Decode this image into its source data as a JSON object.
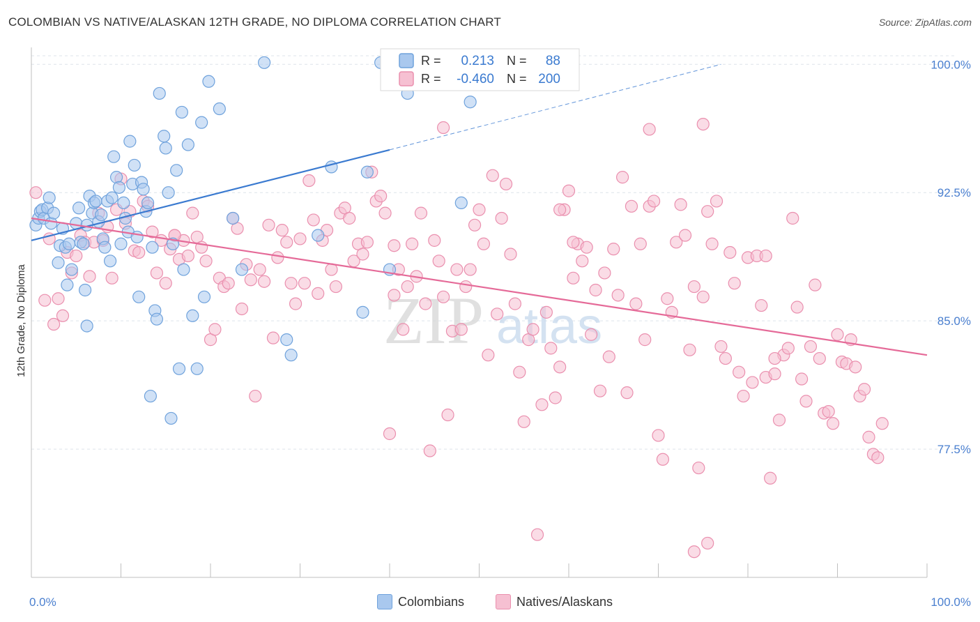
{
  "header": {
    "title": "COLOMBIAN VS NATIVE/ALASKAN 12TH GRADE, NO DIPLOMA CORRELATION CHART",
    "source": "Source: ZipAtlas.com"
  },
  "watermark": {
    "zip": "ZIP",
    "atlas": "atlas"
  },
  "legend_top": [
    {
      "r_label": "R =",
      "r_value": "0.213",
      "n_label": "N =",
      "n_value": "88"
    },
    {
      "r_label": "R =",
      "r_value": "-0.460",
      "n_label": "N =",
      "n_value": "200"
    }
  ],
  "legend_bottom": [
    "Colombians",
    "Natives/Alaskans"
  ],
  "colors": {
    "blue_fill": "#a9c8ee",
    "blue_stroke": "#6fa2dc",
    "blue_line": "#3a7ad0",
    "pink_fill": "#f6c0d2",
    "pink_stroke": "#ea8fae",
    "pink_line": "#e56a98",
    "tick_text": "#4a7fcf",
    "grid": "#dde3ea"
  },
  "chart_data": {
    "type": "scatter",
    "xlabel": "",
    "ylabel": "12th Grade, No Diploma",
    "xlim": [
      0,
      100
    ],
    "ylim": [
      70.0,
      100.5
    ],
    "x_tick_labels": [
      "0.0%",
      "100.0%"
    ],
    "y_ticks": [
      77.5,
      85.0,
      92.5,
      100.0
    ],
    "y_tick_labels": [
      "77.5%",
      "85.0%",
      "92.5%",
      "100.0%"
    ],
    "grid": true,
    "legend_position": "top-center",
    "series": [
      {
        "name": "Colombians",
        "r": 0.213,
        "n": 88,
        "trend": {
          "x0": 0,
          "y0": 89.7,
          "x1": 40,
          "y1": 95.0,
          "dashed_to_x": 77,
          "dashed_to_y": 100.0
        },
        "points": [
          [
            0.5,
            90.6
          ],
          [
            0.8,
            91.0
          ],
          [
            1.0,
            91.4
          ],
          [
            1.2,
            91.5
          ],
          [
            1.4,
            91.0
          ],
          [
            1.8,
            91.6
          ],
          [
            2.0,
            92.2
          ],
          [
            2.2,
            90.7
          ],
          [
            2.5,
            91.3
          ],
          [
            3.0,
            88.4
          ],
          [
            3.2,
            89.4
          ],
          [
            3.5,
            90.4
          ],
          [
            3.8,
            89.3
          ],
          [
            4.0,
            87.1
          ],
          [
            4.2,
            89.5
          ],
          [
            4.5,
            88.0
          ],
          [
            5.0,
            90.7
          ],
          [
            5.3,
            91.6
          ],
          [
            5.5,
            89.6
          ],
          [
            5.8,
            89.5
          ],
          [
            6.0,
            86.8
          ],
          [
            6.2,
            90.6
          ],
          [
            6.5,
            92.3
          ],
          [
            6.8,
            91.3
          ],
          [
            7.0,
            91.9
          ],
          [
            7.2,
            92.0
          ],
          [
            7.5,
            90.8
          ],
          [
            7.8,
            91.2
          ],
          [
            8.0,
            89.8
          ],
          [
            8.2,
            89.3
          ],
          [
            8.5,
            92.0
          ],
          [
            8.8,
            88.5
          ],
          [
            9.0,
            92.2
          ],
          [
            9.2,
            94.6
          ],
          [
            9.5,
            93.4
          ],
          [
            9.8,
            92.8
          ],
          [
            10.0,
            89.5
          ],
          [
            10.3,
            91.9
          ],
          [
            10.5,
            91.0
          ],
          [
            10.8,
            90.2
          ],
          [
            11.0,
            95.5
          ],
          [
            11.3,
            93.0
          ],
          [
            11.5,
            94.1
          ],
          [
            11.8,
            89.9
          ],
          [
            12.0,
            86.4
          ],
          [
            12.3,
            93.1
          ],
          [
            12.5,
            92.7
          ],
          [
            12.8,
            91.4
          ],
          [
            13.0,
            91.9
          ],
          [
            13.3,
            80.6
          ],
          [
            13.5,
            89.3
          ],
          [
            13.8,
            85.6
          ],
          [
            14.0,
            85.1
          ],
          [
            14.3,
            98.3
          ],
          [
            14.8,
            95.8
          ],
          [
            15.0,
            95.1
          ],
          [
            15.3,
            92.5
          ],
          [
            15.6,
            79.3
          ],
          [
            15.8,
            89.5
          ],
          [
            16.2,
            93.8
          ],
          [
            16.5,
            82.2
          ],
          [
            16.8,
            97.2
          ],
          [
            17.0,
            88.0
          ],
          [
            17.5,
            95.3
          ],
          [
            18.0,
            85.3
          ],
          [
            18.5,
            82.2
          ],
          [
            19.0,
            96.6
          ],
          [
            19.3,
            86.4
          ],
          [
            19.8,
            99.0
          ],
          [
            21.0,
            97.4
          ],
          [
            22.5,
            91.0
          ],
          [
            23.5,
            88.0
          ],
          [
            26.0,
            100.1
          ],
          [
            28.5,
            83.9
          ],
          [
            29.0,
            83.0
          ],
          [
            32.0,
            90.0
          ],
          [
            33.5,
            94.0
          ],
          [
            37.5,
            93.7
          ],
          [
            37.0,
            85.5
          ],
          [
            39.0,
            100.1
          ],
          [
            42.0,
            98.3
          ],
          [
            45.0,
            100.1
          ],
          [
            49.0,
            97.8
          ],
          [
            53.0,
            100.1
          ],
          [
            59.0,
            99.4
          ],
          [
            40.0,
            88.0
          ],
          [
            48.0,
            91.9
          ],
          [
            6.2,
            84.7
          ]
        ]
      },
      {
        "name": "Natives/Alaskans",
        "r": -0.46,
        "n": 200,
        "trend": {
          "x0": 0,
          "y0": 91.0,
          "x1": 100,
          "y1": 83.0
        },
        "points": [
          [
            0.5,
            92.5
          ],
          [
            1.5,
            86.2
          ],
          [
            2.0,
            89.8
          ],
          [
            2.5,
            84.8
          ],
          [
            3.0,
            86.3
          ],
          [
            3.5,
            85.3
          ],
          [
            4.0,
            89.0
          ],
          [
            4.5,
            87.8
          ],
          [
            5.0,
            88.8
          ],
          [
            5.5,
            90.0
          ],
          [
            6.0,
            89.6
          ],
          [
            6.5,
            87.6
          ],
          [
            7.0,
            89.6
          ],
          [
            7.5,
            91.3
          ],
          [
            8.0,
            89.7
          ],
          [
            8.5,
            90.5
          ],
          [
            9.0,
            87.5
          ],
          [
            9.5,
            91.5
          ],
          [
            10.0,
            93.3
          ],
          [
            10.5,
            90.7
          ],
          [
            11.0,
            91.4
          ],
          [
            11.5,
            89.1
          ],
          [
            12.0,
            89.0
          ],
          [
            12.5,
            92.0
          ],
          [
            13.0,
            91.7
          ],
          [
            13.5,
            90.2
          ],
          [
            14.0,
            87.8
          ],
          [
            14.5,
            89.7
          ],
          [
            15.0,
            87.2
          ],
          [
            15.5,
            89.2
          ],
          [
            16.0,
            90.0
          ],
          [
            16.5,
            88.6
          ],
          [
            17.0,
            89.7
          ],
          [
            17.5,
            88.8
          ],
          [
            18.0,
            91.3
          ],
          [
            18.5,
            89.9
          ],
          [
            19.0,
            89.3
          ],
          [
            19.5,
            88.5
          ],
          [
            20.0,
            83.9
          ],
          [
            20.5,
            84.5
          ],
          [
            21.0,
            87.5
          ],
          [
            21.5,
            87.0
          ],
          [
            22.0,
            87.2
          ],
          [
            22.5,
            91.0
          ],
          [
            23.0,
            90.4
          ],
          [
            23.5,
            85.7
          ],
          [
            24.0,
            88.3
          ],
          [
            24.5,
            87.4
          ],
          [
            25.0,
            80.6
          ],
          [
            25.5,
            88.0
          ],
          [
            26.0,
            87.3
          ],
          [
            26.5,
            90.6
          ],
          [
            27.0,
            84.0
          ],
          [
            27.5,
            88.7
          ],
          [
            28.0,
            90.3
          ],
          [
            28.5,
            89.6
          ],
          [
            29.0,
            87.2
          ],
          [
            29.5,
            86.0
          ],
          [
            30.0,
            89.8
          ],
          [
            30.5,
            87.2
          ],
          [
            31.0,
            93.2
          ],
          [
            31.5,
            90.9
          ],
          [
            32.0,
            86.6
          ],
          [
            32.5,
            89.7
          ],
          [
            33.0,
            90.3
          ],
          [
            33.5,
            88.0
          ],
          [
            34.0,
            87.0
          ],
          [
            34.5,
            91.3
          ],
          [
            35.0,
            91.6
          ],
          [
            35.5,
            91.0
          ],
          [
            36.0,
            88.5
          ],
          [
            36.5,
            89.5
          ],
          [
            37.0,
            88.9
          ],
          [
            37.5,
            89.6
          ],
          [
            38.0,
            93.7
          ],
          [
            38.5,
            92.0
          ],
          [
            39.0,
            92.3
          ],
          [
            39.5,
            91.3
          ],
          [
            40.0,
            78.4
          ],
          [
            40.5,
            89.4
          ],
          [
            41.0,
            88.0
          ],
          [
            41.5,
            84.5
          ],
          [
            42.0,
            87.0
          ],
          [
            42.5,
            89.5
          ],
          [
            43.0,
            87.6
          ],
          [
            43.5,
            91.3
          ],
          [
            44.0,
            86.0
          ],
          [
            44.5,
            77.4
          ],
          [
            45.0,
            89.7
          ],
          [
            45.5,
            88.5
          ],
          [
            46.0,
            86.4
          ],
          [
            46.5,
            79.5
          ],
          [
            47.0,
            84.4
          ],
          [
            47.5,
            88.0
          ],
          [
            48.0,
            84.5
          ],
          [
            48.5,
            87.0
          ],
          [
            49.0,
            88.0
          ],
          [
            49.5,
            90.6
          ],
          [
            50.0,
            91.5
          ],
          [
            50.5,
            89.5
          ],
          [
            51.0,
            83.0
          ],
          [
            51.5,
            93.5
          ],
          [
            52.0,
            85.4
          ],
          [
            52.5,
            91.0
          ],
          [
            53.0,
            93.0
          ],
          [
            53.5,
            88.9
          ],
          [
            54.0,
            86.0
          ],
          [
            54.5,
            82.0
          ],
          [
            55.0,
            79.1
          ],
          [
            55.5,
            83.9
          ],
          [
            56.0,
            84.5
          ],
          [
            56.5,
            72.5
          ],
          [
            57.0,
            80.1
          ],
          [
            57.5,
            85.5
          ],
          [
            58.0,
            83.4
          ],
          [
            58.5,
            80.5
          ],
          [
            59.0,
            82.3
          ],
          [
            59.5,
            91.5
          ],
          [
            60.0,
            92.6
          ],
          [
            60.5,
            87.5
          ],
          [
            61.0,
            89.5
          ],
          [
            61.5,
            88.5
          ],
          [
            62.0,
            89.3
          ],
          [
            62.5,
            84.2
          ],
          [
            63.0,
            86.8
          ],
          [
            63.5,
            80.9
          ],
          [
            64.0,
            87.8
          ],
          [
            64.5,
            82.9
          ],
          [
            65.0,
            89.2
          ],
          [
            65.5,
            86.5
          ],
          [
            66.0,
            93.4
          ],
          [
            66.5,
            80.8
          ],
          [
            67.0,
            91.7
          ],
          [
            67.5,
            86.0
          ],
          [
            68.0,
            89.5
          ],
          [
            68.5,
            83.9
          ],
          [
            69.0,
            91.7
          ],
          [
            69.5,
            92.0
          ],
          [
            70.0,
            78.3
          ],
          [
            70.5,
            76.9
          ],
          [
            71.0,
            86.3
          ],
          [
            71.5,
            85.5
          ],
          [
            72.0,
            89.6
          ],
          [
            72.5,
            91.8
          ],
          [
            73.0,
            90.0
          ],
          [
            73.5,
            83.3
          ],
          [
            74.0,
            87.0
          ],
          [
            74.5,
            76.4
          ],
          [
            75.0,
            86.4
          ],
          [
            75.5,
            91.4
          ],
          [
            76.0,
            89.5
          ],
          [
            76.5,
            92.0
          ],
          [
            77.0,
            83.5
          ],
          [
            77.5,
            82.8
          ],
          [
            78.0,
            89.0
          ],
          [
            78.5,
            87.2
          ],
          [
            79.0,
            82.0
          ],
          [
            79.5,
            80.6
          ],
          [
            80.0,
            88.7
          ],
          [
            80.5,
            81.4
          ],
          [
            81.0,
            88.8
          ],
          [
            81.5,
            85.9
          ],
          [
            82.0,
            81.7
          ],
          [
            82.5,
            75.8
          ],
          [
            83.0,
            81.9
          ],
          [
            83.5,
            79.2
          ],
          [
            84.0,
            83.0
          ],
          [
            84.5,
            83.4
          ],
          [
            85.0,
            91.0
          ],
          [
            85.5,
            85.8
          ],
          [
            86.0,
            81.6
          ],
          [
            86.5,
            80.3
          ],
          [
            87.0,
            83.5
          ],
          [
            87.5,
            87.1
          ],
          [
            88.0,
            82.8
          ],
          [
            88.5,
            79.6
          ],
          [
            89.0,
            79.7
          ],
          [
            89.5,
            79.0
          ],
          [
            90.0,
            84.2
          ],
          [
            90.5,
            82.6
          ],
          [
            91.0,
            82.5
          ],
          [
            91.5,
            83.9
          ],
          [
            92.0,
            82.3
          ],
          [
            92.5,
            80.6
          ],
          [
            93.0,
            81.0
          ],
          [
            93.5,
            78.2
          ],
          [
            94.0,
            77.2
          ],
          [
            94.5,
            77.0
          ],
          [
            95.0,
            79.0
          ],
          [
            46.0,
            96.3
          ],
          [
            69.0,
            96.2
          ],
          [
            75.0,
            96.5
          ],
          [
            59.0,
            91.5
          ],
          [
            16.0,
            90.0
          ],
          [
            60.5,
            89.6
          ],
          [
            40.5,
            86.5
          ],
          [
            83.0,
            82.8
          ],
          [
            75.5,
            72.0
          ],
          [
            74.0,
            71.5
          ],
          [
            82.0,
            88.8
          ]
        ]
      }
    ]
  }
}
